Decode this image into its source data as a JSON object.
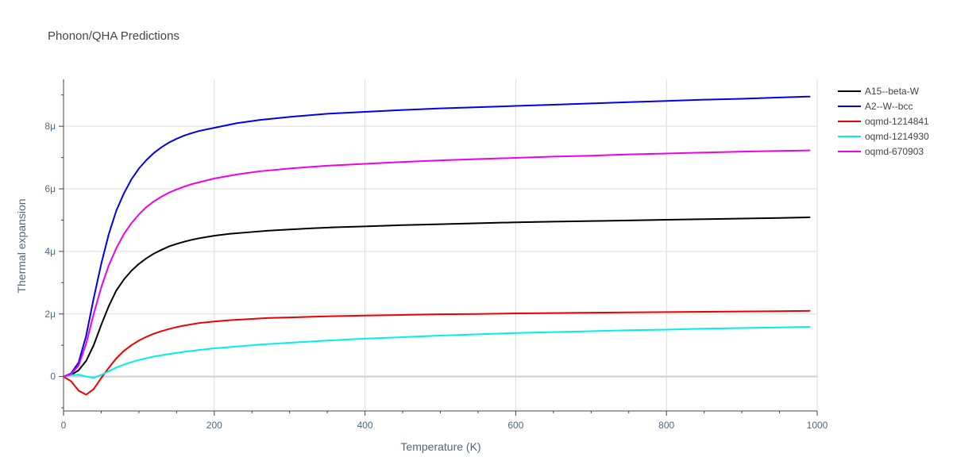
{
  "chart_data": {
    "type": "line",
    "title": "Phonon/QHA Predictions",
    "xlabel": "Temperature (K)",
    "ylabel": "Thermal expansion",
    "xlim": [
      0,
      1000
    ],
    "ylim": [
      -1.1,
      9.5
    ],
    "x_ticks": [
      {
        "value": 0,
        "label": "0"
      },
      {
        "value": 200,
        "label": "200"
      },
      {
        "value": 400,
        "label": "400"
      },
      {
        "value": 600,
        "label": "600"
      },
      {
        "value": 800,
        "label": "800"
      },
      {
        "value": 1000,
        "label": "1000"
      }
    ],
    "y_ticks": [
      {
        "value": 0,
        "label": "0"
      },
      {
        "value": 2,
        "label": "2μ"
      },
      {
        "value": 4,
        "label": "4μ"
      },
      {
        "value": 6,
        "label": "6μ"
      },
      {
        "value": 8,
        "label": "8μ"
      }
    ],
    "x_minor_step": 50,
    "y_minor_step": 1,
    "grid": true,
    "legend_position": "top-right",
    "series": [
      {
        "name": "A15--beta-W",
        "color": "#000000",
        "x": [
          0,
          10,
          20,
          30,
          40,
          50,
          60,
          70,
          80,
          90,
          100,
          110,
          120,
          130,
          140,
          150,
          160,
          170,
          180,
          200,
          220,
          250,
          270,
          300,
          330,
          360,
          400,
          450,
          500,
          550,
          600,
          650,
          700,
          750,
          800,
          850,
          900,
          950,
          990
        ],
        "y": [
          0,
          0.05,
          0.2,
          0.5,
          1.0,
          1.65,
          2.25,
          2.75,
          3.1,
          3.38,
          3.6,
          3.78,
          3.93,
          4.05,
          4.16,
          4.24,
          4.31,
          4.37,
          4.42,
          4.5,
          4.56,
          4.62,
          4.66,
          4.7,
          4.74,
          4.77,
          4.8,
          4.84,
          4.87,
          4.9,
          4.93,
          4.95,
          4.97,
          4.99,
          5.01,
          5.03,
          5.05,
          5.07,
          5.09
        ]
      },
      {
        "name": "A2--W--bcc",
        "color": "#0000ee",
        "x": [
          0,
          10,
          20,
          30,
          40,
          50,
          60,
          70,
          80,
          90,
          100,
          110,
          120,
          130,
          140,
          150,
          160,
          170,
          180,
          200,
          230,
          260,
          300,
          350,
          400,
          450,
          500,
          550,
          600,
          650,
          700,
          750,
          800,
          850,
          900,
          950,
          990
        ],
        "y": [
          0,
          0.1,
          0.45,
          1.3,
          2.5,
          3.6,
          4.55,
          5.3,
          5.85,
          6.3,
          6.65,
          6.92,
          7.15,
          7.33,
          7.48,
          7.6,
          7.7,
          7.78,
          7.85,
          7.95,
          8.1,
          8.2,
          8.3,
          8.4,
          8.46,
          8.52,
          8.57,
          8.61,
          8.65,
          8.69,
          8.73,
          8.77,
          8.81,
          8.85,
          8.88,
          8.92,
          8.95
        ]
      },
      {
        "name": "oqmd-1214841",
        "color": "#ee0000",
        "x": [
          0,
          10,
          20,
          30,
          40,
          50,
          60,
          70,
          80,
          90,
          100,
          110,
          120,
          130,
          140,
          150,
          160,
          170,
          180,
          200,
          220,
          250,
          270,
          300,
          330,
          360,
          400,
          450,
          500,
          550,
          600,
          650,
          700,
          750,
          800,
          850,
          900,
          950,
          990
        ],
        "y": [
          0,
          -0.15,
          -0.45,
          -0.58,
          -0.4,
          -0.05,
          0.28,
          0.58,
          0.82,
          1.0,
          1.15,
          1.27,
          1.37,
          1.45,
          1.52,
          1.58,
          1.63,
          1.67,
          1.71,
          1.76,
          1.8,
          1.84,
          1.87,
          1.89,
          1.91,
          1.93,
          1.95,
          1.97,
          1.99,
          2.0,
          2.02,
          2.03,
          2.04,
          2.05,
          2.06,
          2.07,
          2.08,
          2.09,
          2.1
        ]
      },
      {
        "name": "oqmd-1214930",
        "color": "#00eeee",
        "x": [
          0,
          10,
          20,
          30,
          40,
          50,
          60,
          70,
          80,
          90,
          100,
          120,
          140,
          160,
          180,
          200,
          230,
          260,
          300,
          350,
          400,
          450,
          500,
          550,
          600,
          650,
          700,
          750,
          800,
          850,
          900,
          950,
          990
        ],
        "y": [
          0,
          0.04,
          0.06,
          0.0,
          -0.04,
          0.05,
          0.17,
          0.29,
          0.38,
          0.46,
          0.53,
          0.64,
          0.72,
          0.79,
          0.85,
          0.9,
          0.96,
          1.02,
          1.08,
          1.15,
          1.21,
          1.26,
          1.31,
          1.35,
          1.39,
          1.42,
          1.45,
          1.48,
          1.5,
          1.53,
          1.55,
          1.57,
          1.59
        ]
      },
      {
        "name": "oqmd-670903",
        "color": "#ee00ee",
        "x": [
          0,
          10,
          20,
          30,
          40,
          50,
          60,
          70,
          80,
          90,
          100,
          110,
          120,
          130,
          140,
          150,
          160,
          170,
          180,
          200,
          230,
          260,
          300,
          350,
          400,
          450,
          500,
          550,
          600,
          650,
          700,
          750,
          800,
          850,
          900,
          950,
          990
        ],
        "y": [
          0,
          0.08,
          0.35,
          1.05,
          2.0,
          2.85,
          3.55,
          4.1,
          4.55,
          4.9,
          5.18,
          5.42,
          5.6,
          5.75,
          5.88,
          5.98,
          6.07,
          6.15,
          6.21,
          6.33,
          6.46,
          6.56,
          6.65,
          6.74,
          6.8,
          6.86,
          6.91,
          6.95,
          6.99,
          7.03,
          7.06,
          7.1,
          7.13,
          7.16,
          7.19,
          7.21,
          7.23
        ]
      }
    ]
  }
}
